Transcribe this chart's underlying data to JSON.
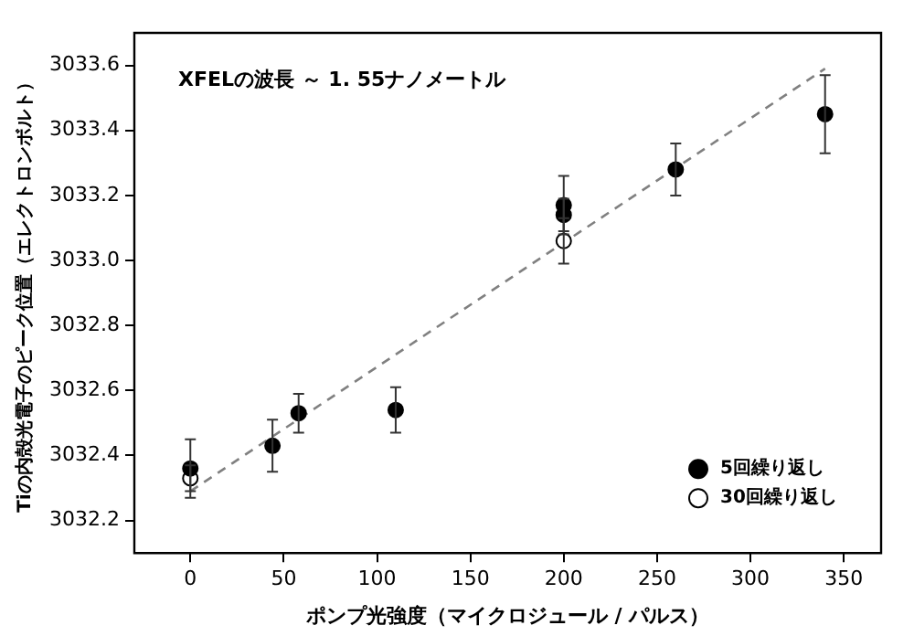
{
  "chart_data": {
    "type": "scatter",
    "xlabel": "ポンプ光強度（マイクロジュール / パルス）",
    "ylabel": "Tiの内殻光電子のピーク位置（エレクトロンボルト）",
    "annotations": [
      "XFELの波長 ～ 1. 55ナノメートル"
    ],
    "xlim": [
      -30,
      370
    ],
    "xticks": [
      0,
      50,
      100,
      150,
      200,
      250,
      300,
      350
    ],
    "ylim": [
      3032.1,
      3033.7
    ],
    "yticks": [
      {
        "value": 3032.2,
        "label": "3032.2"
      },
      {
        "value": 3032.4,
        "label": "3032.4"
      },
      {
        "value": 3032.6,
        "label": "3032.6"
      },
      {
        "value": 3032.8,
        "label": "3032.8"
      },
      {
        "value": 3033.0,
        "label": "3033.0"
      },
      {
        "value": 3033.2,
        "label": "3033.2"
      },
      {
        "value": 3033.4,
        "label": "3033.4"
      },
      {
        "value": 3033.6,
        "label": "3033.6"
      }
    ],
    "grid": false,
    "legend": "bottom right",
    "marker": "circle",
    "series": [
      {
        "type": "line",
        "color": "#808080",
        "line_style": "dashed",
        "marker": "none",
        "x": [
          0,
          340
        ],
        "values": [
          3032.29,
          3033.59
        ]
      },
      {
        "name": "5回繰り返し",
        "color": "#000000",
        "x": [
          0,
          44,
          58,
          110,
          200,
          200,
          260,
          340
        ],
        "values": [
          3032.36,
          3032.43,
          3032.53,
          3032.54,
          3033.14,
          3033.17,
          3033.28,
          3033.45
        ],
        "errors": [
          0.09,
          0.08,
          0.06,
          0.07,
          0.05,
          0.09,
          0.08,
          0.12
        ]
      },
      {
        "name": "30回繰り返し",
        "color": "#ffffff",
        "x": [
          0,
          200
        ],
        "values": [
          3032.33,
          3033.06
        ],
        "errors": [
          0.04,
          0.07
        ]
      }
    ]
  }
}
